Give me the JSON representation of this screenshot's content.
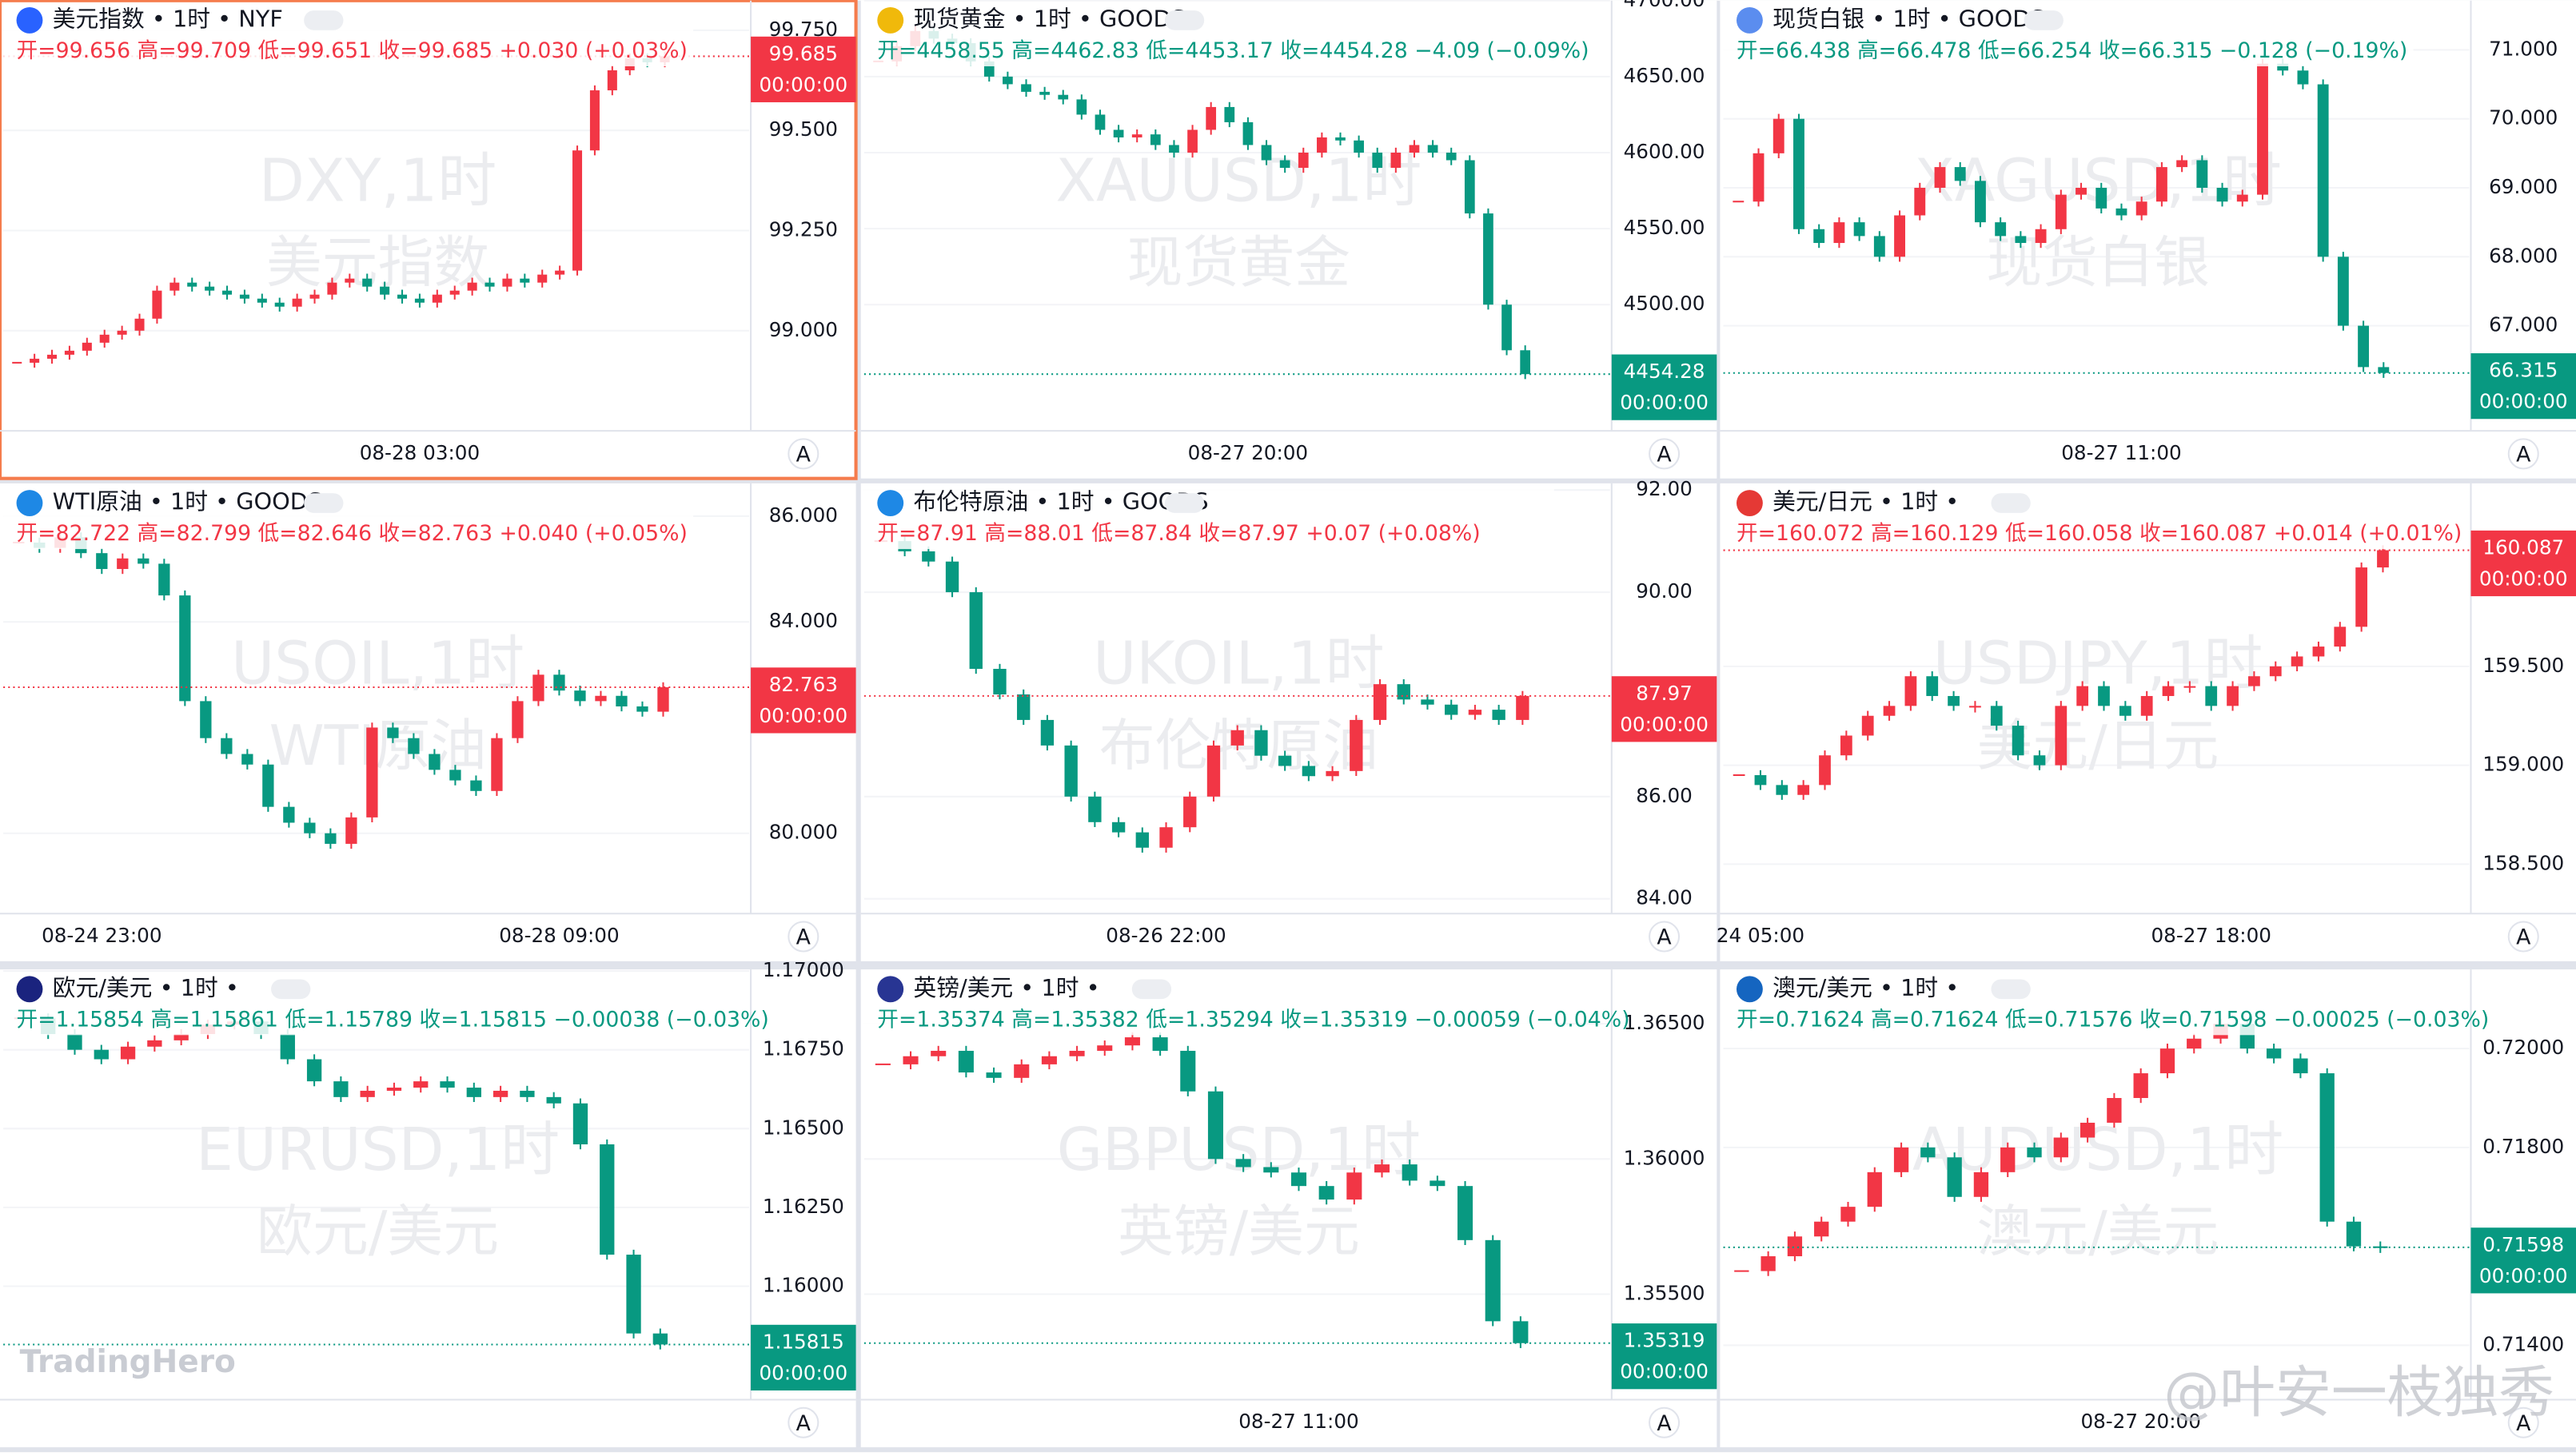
{
  "chart_data": [
    {
      "type": "candlestick",
      "title": "美元指数 • 1时 • NYF",
      "info": "开=99.656 高=99.709 低=99.651 收=99.685 +0.030 (+0.03%)",
      "watermark": [
        "DXY,1时",
        "美元指数"
      ],
      "tag_color": "#f23645",
      "countdown": "00:00:00",
      "button": "A",
      "values": [
        98.92,
        98.93,
        98.94,
        98.95,
        98.97,
        98.99,
        99.0,
        99.03,
        99.1,
        99.12,
        99.11,
        99.1,
        99.09,
        99.08,
        99.07,
        99.06,
        99.08,
        99.09,
        99.12,
        99.13,
        99.11,
        99.09,
        99.08,
        99.07,
        99.09,
        99.1,
        99.12,
        99.11,
        99.13,
        99.12,
        99.14,
        99.15,
        99.45,
        99.6,
        99.65,
        99.68,
        99.67,
        99.685
      ],
      "categories": [
        null,
        null,
        null,
        null,
        null,
        null,
        null,
        null,
        null,
        null,
        null,
        null,
        null,
        null,
        null,
        null,
        null,
        null,
        null,
        null,
        null,
        null,
        null,
        "08-28 03:00",
        null,
        null,
        null,
        null,
        null,
        null,
        null,
        null,
        null,
        null,
        null,
        null,
        null,
        null
      ],
      "ylim": [
        98.75,
        99.824
      ],
      "yticks": [
        {
          "value": 99,
          "label": "99.000"
        },
        {
          "value": 99.25,
          "label": "99.250"
        },
        {
          "value": 99.5,
          "label": "99.500"
        },
        {
          "value": 99.75,
          "label": "99.750"
        }
      ],
      "up_color": "#f23645",
      "down_color": "#089981",
      "grid": true
    },
    {
      "type": "candlestick",
      "title": "现货黄金 • 1时 • GOODS",
      "info": "开=4458.55 高=4462.83 低=4453.17 收=4454.28 −4.09 (−0.09%)",
      "watermark": [
        "XAUUSD,1时",
        "现货黄金"
      ],
      "tag_color": "#089981",
      "countdown": "00:00:00",
      "button": "A",
      "values": [
        4660,
        4670,
        4680,
        4675,
        4672,
        4660,
        4650,
        4645,
        4640,
        4638,
        4635,
        4625,
        4615,
        4610,
        4612,
        4605,
        4600,
        4615,
        4630,
        4620,
        4605,
        4595,
        4590,
        4600,
        4610,
        4608,
        4600,
        4590,
        4600,
        4605,
        4600,
        4595,
        4560,
        4500,
        4470,
        4454.28
      ],
      "categories": [
        null,
        null,
        null,
        null,
        null,
        null,
        null,
        null,
        null,
        null,
        null,
        null,
        null,
        null,
        null,
        null,
        null,
        null,
        null,
        null,
        "08-27 20:00",
        null,
        null,
        null,
        null,
        null,
        null,
        null,
        null,
        null,
        null,
        null,
        null,
        null,
        null,
        null
      ],
      "ylim": [
        4417,
        4700
      ],
      "yticks": [
        {
          "value": 4500,
          "label": "4500.00"
        },
        {
          "value": 4550,
          "label": "4550.00"
        },
        {
          "value": 4600,
          "label": "4600.00"
        },
        {
          "value": 4650,
          "label": "4650.00"
        },
        {
          "value": 4700,
          "label": "4700.00"
        }
      ],
      "up_color": "#f23645",
      "down_color": "#089981",
      "grid": true
    },
    {
      "type": "candlestick",
      "title": "现货白银 • 1时 • GOODS",
      "info": "开=66.438 高=66.478 低=66.254 收=66.315 −0.128 (−0.19%)",
      "watermark": [
        "XAGUSD,1时",
        "现货白银"
      ],
      "tag_color": "#089981",
      "countdown": "00:00:00",
      "button": "A",
      "values": [
        68.8,
        69.5,
        70.0,
        68.4,
        68.2,
        68.5,
        68.3,
        68.0,
        68.6,
        69.0,
        69.3,
        69.1,
        68.5,
        68.3,
        68.2,
        68.4,
        68.9,
        69.0,
        68.7,
        68.6,
        68.8,
        69.3,
        69.4,
        69.0,
        68.8,
        68.9,
        70.8,
        70.7,
        70.5,
        68.0,
        67.0,
        66.4,
        66.315
      ],
      "categories": [
        null,
        null,
        null,
        null,
        null,
        null,
        null,
        null,
        null,
        null,
        null,
        null,
        null,
        null,
        null,
        null,
        null,
        null,
        null,
        "08-27 11:00",
        null,
        null,
        null,
        null,
        null,
        null,
        null,
        null,
        null,
        null,
        null,
        null,
        null
      ],
      "ylim": [
        65.476,
        71.714
      ],
      "yticks": [
        {
          "value": 67,
          "label": "67.000"
        },
        {
          "value": 68,
          "label": "68.000"
        },
        {
          "value": 69,
          "label": "69.000"
        },
        {
          "value": 70,
          "label": "70.000"
        },
        {
          "value": 71,
          "label": "71.000"
        }
      ],
      "up_color": "#f23645",
      "down_color": "#089981",
      "grid": true
    },
    {
      "type": "candlestick",
      "title": "WTI原油 • 1时 • GOODS",
      "info": "开=82.722 高=82.799 低=82.646 收=82.763 +0.040 (+0.05%)",
      "watermark": [
        "USOIL,1时",
        "WTI原油"
      ],
      "tag_color": "#f23645",
      "countdown": "00:00:00",
      "button": "A",
      "values": [
        85.5,
        85.4,
        85.6,
        85.3,
        85.0,
        85.2,
        85.1,
        84.5,
        82.5,
        81.8,
        81.5,
        81.3,
        80.5,
        80.2,
        80.0,
        79.8,
        80.3,
        82.0,
        81.8,
        81.5,
        81.2,
        81.0,
        80.8,
        81.8,
        82.5,
        83.0,
        82.7,
        82.5,
        82.6,
        82.4,
        82.3,
        82.763
      ],
      "categories": [
        null,
        null,
        null,
        null,
        "08-24 23:00",
        null,
        null,
        null,
        null,
        null,
        null,
        null,
        null,
        null,
        null,
        null,
        null,
        null,
        null,
        null,
        null,
        null,
        null,
        null,
        null,
        null,
        "08-28 09:00",
        null,
        null,
        null,
        null,
        null
      ],
      "ylim": [
        78.48,
        86.62
      ],
      "yticks": [
        {
          "value": 80,
          "label": "80.000"
        },
        {
          "value": 84,
          "label": "84.000"
        },
        {
          "value": 86,
          "label": "86.000"
        }
      ],
      "up_color": "#f23645",
      "down_color": "#089981",
      "grid": true
    },
    {
      "type": "candlestick",
      "title": "布伦特原油 • 1时 • GOODS",
      "info": "开=87.91 高=88.01 低=87.84 收=87.97 +0.07 (+0.08%)",
      "watermark": [
        "UKOIL,1时",
        "布伦特原油"
      ],
      "tag_color": "#f23645",
      "countdown": "00:00:00",
      "button": "A",
      "values": [
        91.0,
        90.8,
        90.6,
        90.0,
        88.5,
        88.0,
        87.5,
        87.0,
        86.0,
        85.5,
        85.3,
        85.0,
        85.4,
        86.0,
        87.0,
        87.3,
        86.8,
        86.6,
        86.4,
        86.5,
        87.5,
        88.2,
        87.9,
        87.8,
        87.6,
        87.7,
        87.5,
        87.97
      ],
      "categories": [
        null,
        null,
        null,
        null,
        null,
        null,
        null,
        null,
        null,
        null,
        null,
        null,
        "08-26 22:00",
        null,
        null,
        null,
        null,
        null,
        null,
        null,
        null,
        null,
        null,
        null,
        null,
        null,
        null,
        null
      ],
      "ylim": [
        83.71,
        92.13
      ],
      "yticks": [
        {
          "value": 84,
          "label": "84.00"
        },
        {
          "value": 86,
          "label": "86.00"
        },
        {
          "value": 90,
          "label": "90.00"
        },
        {
          "value": 92,
          "label": "92.00"
        }
      ],
      "up_color": "#f23645",
      "down_color": "#089981",
      "grid": true
    },
    {
      "type": "candlestick",
      "title": "美元/日元 • 1时 •",
      "info": "开=160.072 高=160.129 低=160.058 收=160.087 +0.014 (+0.01%)",
      "watermark": [
        "USDJPY,1时",
        "美元/日元"
      ],
      "tag_color": "#f23645",
      "countdown": "00:00:00",
      "button": "A",
      "values": [
        158.95,
        158.9,
        158.85,
        158.9,
        159.05,
        159.15,
        159.25,
        159.3,
        159.45,
        159.35,
        159.3,
        159.3,
        159.2,
        159.05,
        159.0,
        159.3,
        159.4,
        159.3,
        159.25,
        159.35,
        159.4,
        159.4,
        159.3,
        159.4,
        159.45,
        159.5,
        159.55,
        159.6,
        159.7,
        160.0,
        160.087
      ],
      "categories": [
        null,
        "24 05:00",
        null,
        null,
        null,
        null,
        null,
        null,
        null,
        null,
        null,
        null,
        null,
        null,
        null,
        null,
        null,
        null,
        null,
        null,
        null,
        null,
        "08-27 18:00",
        null,
        null,
        null,
        null,
        null,
        null,
        null,
        null
      ],
      "ylim": [
        158.25,
        160.425
      ],
      "yticks": [
        {
          "value": 158.5,
          "label": "158.500"
        },
        {
          "value": 159,
          "label": "159.000"
        },
        {
          "value": 159.5,
          "label": "159.500"
        }
      ],
      "up_color": "#f23645",
      "down_color": "#089981",
      "grid": true
    },
    {
      "type": "candlestick",
      "title": "欧元/美元 • 1时 •",
      "info": "开=1.15854 高=1.15861 低=1.15789 收=1.15815 −0.00038 (−0.03%)",
      "watermark": [
        "EURUSD,1时",
        "欧元/美元"
      ],
      "tag_color": "#089981",
      "countdown": "00:00:00",
      "button": "A",
      "values": [
        1.1685,
        1.168,
        1.1675,
        1.1672,
        1.1676,
        1.1678,
        1.168,
        1.1683,
        1.1684,
        1.168,
        1.1672,
        1.1665,
        1.166,
        1.1662,
        1.1663,
        1.1665,
        1.1663,
        1.166,
        1.1662,
        1.166,
        1.1658,
        1.1645,
        1.161,
        1.1585,
        1.15815
      ],
      "ylim": [
        1.1564,
        1.17005
      ],
      "yticks": [
        {
          "value": 1.16,
          "label": "1.16000"
        },
        {
          "value": 1.1625,
          "label": "1.16250"
        },
        {
          "value": 1.165,
          "label": "1.16500"
        },
        {
          "value": 1.1675,
          "label": "1.16750"
        },
        {
          "value": 1.17,
          "label": "1.17000"
        }
      ],
      "up_color": "#f23645",
      "down_color": "#089981",
      "grid": true
    },
    {
      "type": "candlestick",
      "title": "英镑/美元 • 1时 •",
      "info": "开=1.35374 高=1.35382 低=1.35294 收=1.35319 −0.00059 (−0.04%)",
      "watermark": [
        "GBPUSD,1时",
        "英镑/美元"
      ],
      "tag_color": "#089981",
      "countdown": "00:00:00",
      "button": "A",
      "values": [
        1.3635,
        1.3638,
        1.364,
        1.3632,
        1.363,
        1.3635,
        1.3638,
        1.364,
        1.3642,
        1.3645,
        1.364,
        1.3625,
        1.36,
        1.3597,
        1.3595,
        1.359,
        1.3585,
        1.3595,
        1.3598,
        1.3592,
        1.359,
        1.357,
        1.354,
        1.35319
      ],
      "categories": [
        null,
        null,
        null,
        null,
        null,
        null,
        null,
        null,
        null,
        null,
        null,
        null,
        null,
        null,
        null,
        "08-27 11:00",
        null,
        null,
        null,
        null,
        null,
        null,
        null,
        null
      ],
      "ylim": [
        1.3511,
        1.36701
      ],
      "yticks": [
        {
          "value": 1.355,
          "label": "1.35500"
        },
        {
          "value": 1.36,
          "label": "1.36000"
        },
        {
          "value": 1.365,
          "label": "1.36500"
        }
      ],
      "up_color": "#f23645",
      "down_color": "#089981",
      "grid": true
    },
    {
      "type": "candlestick",
      "title": "澳元/美元 • 1时 •",
      "info": "开=0.71624 高=0.71624 低=0.71576 收=0.71598 −0.00025 (−0.03%)",
      "watermark": [
        "AUDUSD,1时",
        "澳元/美元"
      ],
      "tag_color": "#089981",
      "countdown": "00:00:00",
      "button": "A",
      "values": [
        0.7155,
        0.7158,
        0.7162,
        0.7165,
        0.7168,
        0.7175,
        0.718,
        0.7178,
        0.717,
        0.7175,
        0.718,
        0.7178,
        0.7182,
        0.7185,
        0.719,
        0.7195,
        0.72,
        0.7202,
        0.7205,
        0.72,
        0.7198,
        0.7195,
        0.7165,
        0.716,
        0.71598
      ],
      "categories": [
        null,
        null,
        null,
        null,
        null,
        null,
        null,
        null,
        null,
        null,
        null,
        null,
        null,
        null,
        null,
        "08-27 20:00",
        null,
        null,
        null,
        null,
        null,
        null,
        null,
        null,
        null
      ],
      "ylim": [
        0.7129,
        0.7216
      ],
      "yticks": [
        {
          "value": 0.714,
          "label": "0.71400"
        },
        {
          "value": 0.718,
          "label": "0.71800"
        },
        {
          "value": 0.72,
          "label": "0.72000"
        }
      ],
      "up_color": "#f23645",
      "down_color": "#089981",
      "grid": true
    }
  ],
  "watermarks": {
    "brand": "TradingHero",
    "author": "@叶安一枝独秀"
  }
}
